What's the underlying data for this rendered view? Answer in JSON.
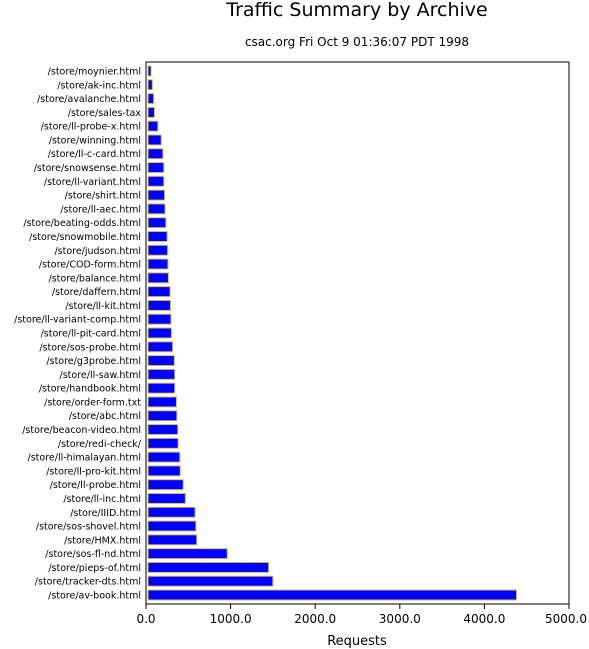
{
  "chart_data": {
    "type": "bar",
    "orientation": "horizontal",
    "title": "Traffic Summary by Archive",
    "subtitle": "csac.org Fri Oct  9 01:36:07 PDT 1998",
    "xlabel": "Requests",
    "ylabel": "",
    "xlim": [
      0,
      5000
    ],
    "xticks": [
      0,
      1000,
      2000,
      3000,
      4000,
      5000
    ],
    "xtick_labels": [
      "0.0",
      "1000.0",
      "2000.0",
      "3000.0",
      "4000.0",
      "5000.0"
    ],
    "grid": false,
    "bar_color": "#0000ff",
    "bar_edge_color": "#d9c34a",
    "categories": [
      "/store/moynier.html",
      "/store/ak-inc.html",
      "/store/avalanche.html",
      "/store/sales-tax",
      "/store/ll-probe-x.html",
      "/store/winning.html",
      "/store/ll-c-card.html",
      "/store/snowsense.html",
      "/store/ll-variant.html",
      "/store/shirt.html",
      "/store/ll-aec.html",
      "/store/beating-odds.html",
      "/store/snowmobile.html",
      "/store/judson.html",
      "/store/COD-form.html",
      "/store/balance.html",
      "/store/daffern.html",
      "/store/ll-kit.html",
      "/store/ll-variant-comp.html",
      "/store/ll-pit-card.html",
      "/store/sos-probe.html",
      "/store/g3probe.html",
      "/store/ll-saw.html",
      "/store/handbook.html",
      "/store/order-form.txt",
      "/store/abc.html",
      "/store/beacon-video.html",
      "/store/redi-check/",
      "/store/ll-himalayan.html",
      "/store/ll-pro-kit.html",
      "/store/ll-probe.html",
      "/store/ll-inc.html",
      "/store/IIID.html",
      "/store/sos-shovel.html",
      "/store/HMX.html",
      "/store/sos-fl-nd.html",
      "/store/pieps-of.html",
      "/store/tracker-dts.html",
      "/store/av-book.html"
    ],
    "values": [
      60,
      75,
      90,
      100,
      140,
      180,
      200,
      210,
      210,
      220,
      225,
      235,
      250,
      255,
      260,
      265,
      285,
      290,
      295,
      300,
      315,
      335,
      340,
      340,
      360,
      365,
      375,
      380,
      400,
      405,
      440,
      465,
      580,
      590,
      600,
      960,
      1450,
      1500,
      4380
    ]
  }
}
